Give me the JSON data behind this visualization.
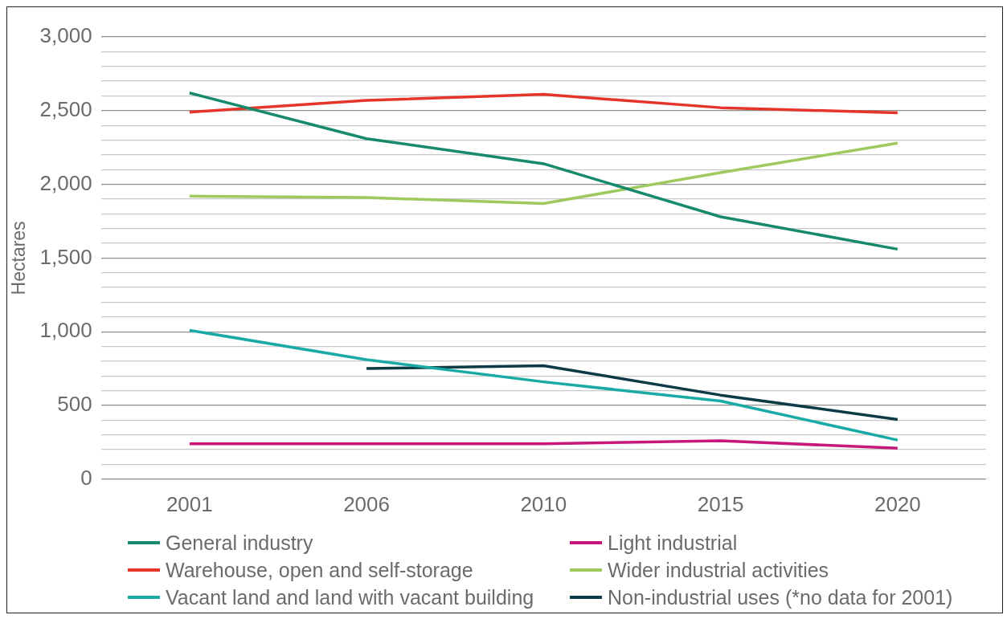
{
  "chart_data": {
    "type": "line",
    "categories": [
      "2001",
      "2006",
      "2010",
      "2015",
      "2020"
    ],
    "ylabel": "Hectares",
    "ylim": [
      0,
      3000
    ],
    "yticks": [
      0,
      {
        "value": 100,
        "label": null
      },
      {
        "value": 200,
        "label": null
      },
      {
        "value": 300,
        "label": null
      },
      {
        "value": 400,
        "label": null
      },
      500,
      {
        "value": 600,
        "label": null
      },
      {
        "value": 700,
        "label": null
      },
      {
        "value": 800,
        "label": null
      },
      {
        "value": 900,
        "label": null
      },
      {
        "value": 1000,
        "label": "1,000"
      },
      {
        "value": 1100,
        "label": null
      },
      {
        "value": 1200,
        "label": null
      },
      {
        "value": 1300,
        "label": null
      },
      {
        "value": 1400,
        "label": null
      },
      {
        "value": 1500,
        "label": "1,500"
      },
      {
        "value": 1600,
        "label": null
      },
      {
        "value": 1700,
        "label": null
      },
      {
        "value": 1800,
        "label": null
      },
      {
        "value": 1900,
        "label": null
      },
      {
        "value": 2000,
        "label": "2,000"
      },
      {
        "value": 2100,
        "label": null
      },
      {
        "value": 2200,
        "label": null
      },
      {
        "value": 2300,
        "label": null
      },
      {
        "value": 2400,
        "label": null
      },
      {
        "value": 2500,
        "label": "2,500"
      },
      {
        "value": 2600,
        "label": null
      },
      {
        "value": 2700,
        "label": null
      },
      {
        "value": 2800,
        "label": null
      },
      {
        "value": 2900,
        "label": null
      },
      {
        "value": 3000,
        "label": "3,000"
      }
    ],
    "grid": "y",
    "legend": "bottom",
    "marker": "none",
    "line_style": "solid",
    "series": [
      {
        "name": "General industry",
        "color": "#178a6b",
        "values": [
          2620,
          2310,
          2140,
          1780,
          1560
        ]
      },
      {
        "name": "Warehouse, open and self-storage",
        "color": "#e5352b",
        "values": [
          2490,
          2570,
          2610,
          2520,
          2485
        ]
      },
      {
        "name": "Vacant land and land with vacant building",
        "color": "#1aaaa6",
        "values": [
          1010,
          810,
          660,
          530,
          265
        ]
      },
      {
        "name": "Light industrial",
        "color": "#c8177b",
        "values": [
          240,
          240,
          240,
          260,
          210
        ]
      },
      {
        "name": "Wider industrial activities",
        "color": "#9ec95e",
        "values": [
          1920,
          1910,
          1870,
          2080,
          2280
        ]
      },
      {
        "name": "Non-industrial uses (*no data for 2001)",
        "color": "#0c3b45",
        "values": [
          null,
          750,
          770,
          570,
          405
        ]
      }
    ]
  }
}
